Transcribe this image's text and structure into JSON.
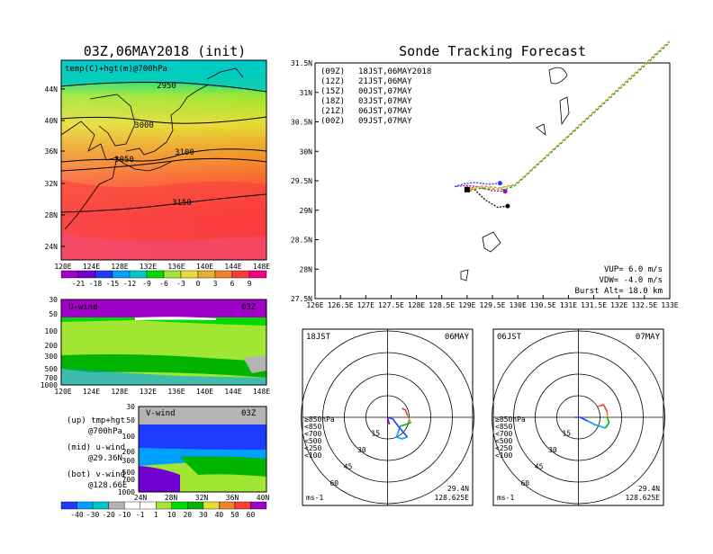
{
  "left": {
    "title": "03Z,06MAY2018 (init)",
    "map_label": "temp(C)+hgt(m)@700hPa",
    "lat_ticks": [
      "44N",
      "40N",
      "36N",
      "32N",
      "28N",
      "24N"
    ],
    "lon_ticks": [
      "120E",
      "124E",
      "128E",
      "132E",
      "136E",
      "140E",
      "144E",
      "148E"
    ],
    "contours": [
      "2950",
      "3000",
      "3050",
      "3100",
      "3150"
    ],
    "temp_scale": [
      "-21",
      "-18",
      "-15",
      "-12",
      "-9",
      "-6",
      "-3",
      "0",
      "3",
      "6",
      "9"
    ],
    "temp_colors": [
      "#a000c8",
      "#7300d2",
      "#1e3cff",
      "#00a0ff",
      "#00c8c8",
      "#00dc00",
      "#a0e632",
      "#e6dc32",
      "#e6af2d",
      "#f08228",
      "#fa3c3c",
      "#f00082"
    ],
    "uwind_label": "U-wind",
    "uwind_time": "03Z",
    "vwind_label": "V-wind",
    "vwind_time": "03Z",
    "p_ticks_u": [
      "30",
      "50",
      "100",
      "200",
      "300",
      "500",
      "700",
      "1000"
    ],
    "p_ticks_v": [
      "30",
      "50",
      "100",
      "200",
      "300",
      "500",
      "700",
      "1000"
    ],
    "v_lat_ticks": [
      "24N",
      "28N",
      "32N",
      "36N",
      "40N"
    ],
    "wind_scale": [
      "-40",
      "-30",
      "-20",
      "-10",
      "-1",
      "1",
      "10",
      "20",
      "30",
      "40",
      "50",
      "60"
    ],
    "legend_text": {
      "up": "(up) tmp+hgt",
      "up2": "@700hPa",
      "mid": "(mid) u-wind",
      "mid2": "@29.36N",
      "bot": "(bot) v-wind",
      "bot2": "@128.66E"
    }
  },
  "right": {
    "title": "Sonde Tracking Forecast",
    "launches": [
      {
        "tag": "(09Z)",
        "text": "18JST,06MAY2018",
        "color": "#000000"
      },
      {
        "tag": "(12Z)",
        "text": "21JST,06MAY",
        "color": "#a000c8"
      },
      {
        "tag": "(15Z)",
        "text": "00JST,07MAY",
        "color": "#1e3cff"
      },
      {
        "tag": "(18Z)",
        "text": "03JST,07MAY",
        "color": "#00b400"
      },
      {
        "tag": "(21Z)",
        "text": "06JST,07MAY",
        "color": "#e6af2d"
      },
      {
        "tag": "(00Z)",
        "text": "09JST,07MAY",
        "color": "#f08228"
      }
    ],
    "lat_ticks": [
      "31.5N",
      "31N",
      "30.5N",
      "30N",
      "29.5N",
      "29N",
      "28.5N",
      "28N",
      "27.5N"
    ],
    "lon_ticks": [
      "126E",
      "126.5E",
      "127E",
      "127.5E",
      "128E",
      "128.5E",
      "129E",
      "129.5E",
      "130E",
      "130.5E",
      "131E",
      "131.5E",
      "132E",
      "132.5E",
      "133E"
    ],
    "params": {
      "vup": "VUP= 6.0 m/s",
      "vdw": "VDW= -4.0 m/s",
      "burst": "Burst Alt= 18.0 km"
    },
    "hodo1": {
      "time": "18JST",
      "date": "06MAY",
      "lat": "29.4N",
      "lon": "128.625E",
      "unit": "ms-1"
    },
    "hodo2": {
      "time": "06JST",
      "date": "07MAY",
      "lat": "29.4N",
      "lon": "128.625E",
      "unit": "ms-1"
    },
    "ring_labels": [
      "15",
      "30",
      "45",
      "60"
    ],
    "hodo_legend": [
      {
        "text": "≥850hPa",
        "color": "#f03c3c"
      },
      {
        "text": "<850",
        "color": "#f08228"
      },
      {
        "text": "<700",
        "color": "#e6af2d"
      },
      {
        "text": "<500",
        "color": "#00b400"
      },
      {
        "text": "<250",
        "color": "#00a0ff"
      },
      {
        "text": "<100",
        "color": "#1e3cff"
      }
    ]
  },
  "chart_data": [
    {
      "type": "heatmap",
      "title": "03Z,06MAY2018 (init)",
      "label": "temp(C)+hgt(m)@700hPa",
      "x_range": [
        "120E",
        "149E"
      ],
      "y_range": [
        "22N",
        "47N"
      ],
      "contour_values": [
        2950,
        3000,
        3050,
        3100,
        3150
      ]
    },
    {
      "type": "line",
      "title": "Sonde Tracking Forecast",
      "xlim": [
        126,
        133
      ],
      "ylim": [
        27.5,
        31.5
      ],
      "series": [
        {
          "name": "(09Z) 18JST,06MAY2018",
          "x": [
            129.8,
            129.6,
            129.35,
            129.15,
            128.95
          ],
          "y": [
            29.07,
            29.05,
            29.18,
            29.35,
            29.38
          ]
        },
        {
          "name": "(12Z) 21JST,06MAY",
          "x": [
            129.75,
            129.5,
            129.2,
            129.0,
            128.75
          ],
          "y": [
            29.32,
            29.33,
            29.4,
            29.42,
            29.4
          ]
        },
        {
          "name": "(15Z) 00JST,07MAY",
          "x": [
            129.65,
            129.45,
            129.15,
            128.95,
            128.75
          ],
          "y": [
            29.46,
            29.44,
            29.47,
            29.45,
            29.4
          ]
        },
        {
          "name": "(18Z) 03JST,07MAY",
          "x": [
            129.05,
            129.25,
            129.5,
            129.75,
            129.95,
            131.0,
            132.0,
            133.0
          ],
          "y": [
            29.35,
            29.37,
            29.36,
            29.35,
            29.42,
            30.25,
            31.05,
            31.85
          ]
        },
        {
          "name": "(21Z) 06JST,07MAY",
          "x": [
            129.05,
            129.3,
            129.6,
            129.9
          ],
          "y": [
            29.36,
            29.39,
            29.36,
            29.42
          ]
        },
        {
          "name": "(00Z) 09JST,07MAY",
          "x": [
            129.0,
            129.3,
            129.65,
            129.95,
            131.0,
            132.0,
            133.0
          ],
          "y": [
            29.37,
            29.41,
            29.38,
            29.44,
            30.27,
            31.08,
            31.88
          ]
        }
      ]
    }
  ]
}
